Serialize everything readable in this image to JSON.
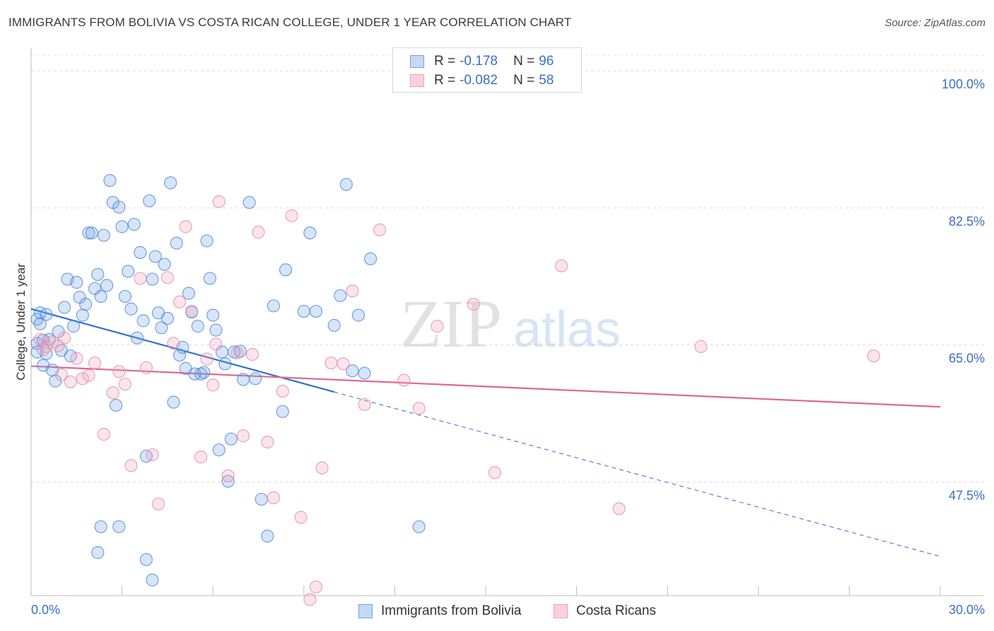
{
  "header": {
    "title": "IMMIGRANTS FROM BOLIVIA VS COSTA RICAN COLLEGE, UNDER 1 YEAR CORRELATION CHART",
    "source": "Source: ZipAtlas.com"
  },
  "watermark": {
    "zip": "ZIP",
    "atlas": "atlas"
  },
  "legend": {
    "rows": [
      {
        "r_label": "R =",
        "r_value": "-0.178",
        "n_label": "N =",
        "n_value": "96",
        "color": "#6fa3e6"
      },
      {
        "r_label": "R =",
        "r_value": "-0.082",
        "n_label": "N =",
        "n_value": "58",
        "color": "#f0a0b8"
      }
    ]
  },
  "bottom_legend": {
    "items": [
      {
        "label": "Immigrants from Bolivia",
        "color": "#6fa3e6"
      },
      {
        "label": "Costa Ricans",
        "color": "#f0a0b8"
      }
    ]
  },
  "chart_data": {
    "type": "scatter",
    "title": "IMMIGRANTS FROM BOLIVIA VS COSTA RICAN COLLEGE, UNDER 1 YEAR CORRELATION CHART",
    "xlabel": "",
    "ylabel": "College, Under 1 year",
    "xlim": [
      0,
      30
    ],
    "ylim": [
      33,
      102
    ],
    "x_tick_labels": [
      "0.0%",
      "30.0%"
    ],
    "y_ticks": [
      {
        "value": 100,
        "label": "100.0%"
      },
      {
        "value": 82.5,
        "label": "82.5%"
      },
      {
        "value": 65,
        "label": "65.0%"
      },
      {
        "value": 47.5,
        "label": "47.5%"
      }
    ],
    "legend_position": "top-center",
    "grid": true,
    "series": [
      {
        "name": "Immigrants from Bolivia",
        "color": "#6fa3e6",
        "edge": "#4a86d8",
        "trend": {
          "x": [
            0,
            10
          ],
          "y": [
            69.6,
            59.0
          ],
          "dashed_to": [
            30,
            38.0
          ],
          "color": "#2f6fd0"
        },
        "points": [
          [
            0.2,
            65.2
          ],
          [
            0.2,
            64.1
          ],
          [
            0.2,
            68.3
          ],
          [
            0.3,
            69.1
          ],
          [
            0.3,
            67.7
          ],
          [
            0.4,
            65.6
          ],
          [
            0.4,
            62.4
          ],
          [
            0.5,
            63.9
          ],
          [
            0.5,
            68.9
          ],
          [
            0.6,
            65.7
          ],
          [
            0.7,
            61.8
          ],
          [
            0.8,
            60.4
          ],
          [
            0.9,
            66.7
          ],
          [
            1.0,
            64.3
          ],
          [
            1.1,
            69.8
          ],
          [
            1.2,
            73.4
          ],
          [
            1.3,
            63.6
          ],
          [
            1.4,
            67.4
          ],
          [
            1.5,
            73.0
          ],
          [
            1.6,
            71.1
          ],
          [
            1.7,
            68.8
          ],
          [
            1.8,
            70.2
          ],
          [
            1.9,
            79.3
          ],
          [
            2.0,
            79.3
          ],
          [
            2.1,
            72.2
          ],
          [
            2.2,
            74.0
          ],
          [
            2.3,
            71.2
          ],
          [
            2.4,
            79.0
          ],
          [
            2.5,
            72.6
          ],
          [
            2.6,
            86.0
          ],
          [
            2.7,
            83.2
          ],
          [
            2.8,
            57.3
          ],
          [
            2.9,
            82.6
          ],
          [
            3.0,
            80.1
          ],
          [
            3.1,
            71.2
          ],
          [
            3.2,
            74.4
          ],
          [
            3.3,
            69.6
          ],
          [
            3.4,
            80.4
          ],
          [
            3.5,
            65.9
          ],
          [
            3.6,
            76.8
          ],
          [
            3.7,
            68.1
          ],
          [
            3.8,
            50.8
          ],
          [
            3.9,
            83.4
          ],
          [
            4.0,
            73.4
          ],
          [
            4.1,
            76.3
          ],
          [
            4.2,
            69.1
          ],
          [
            4.3,
            67.2
          ],
          [
            4.4,
            75.3
          ],
          [
            4.5,
            68.4
          ],
          [
            4.6,
            85.7
          ],
          [
            4.7,
            57.7
          ],
          [
            4.8,
            78.0
          ],
          [
            4.9,
            63.7
          ],
          [
            5.0,
            64.7
          ],
          [
            5.1,
            62.0
          ],
          [
            5.2,
            71.6
          ],
          [
            5.3,
            69.2
          ],
          [
            5.4,
            61.3
          ],
          [
            5.5,
            67.4
          ],
          [
            5.6,
            61.3
          ],
          [
            5.7,
            61.5
          ],
          [
            5.8,
            78.3
          ],
          [
            5.9,
            73.5
          ],
          [
            6.0,
            68.8
          ],
          [
            6.1,
            66.9
          ],
          [
            6.2,
            51.6
          ],
          [
            6.3,
            64.1
          ],
          [
            6.4,
            62.6
          ],
          [
            6.5,
            47.6
          ],
          [
            6.7,
            64.1
          ],
          [
            6.9,
            64.2
          ],
          [
            7.0,
            60.6
          ],
          [
            7.2,
            83.2
          ],
          [
            7.4,
            60.7
          ],
          [
            7.6,
            45.3
          ],
          [
            8.0,
            70.0
          ],
          [
            8.3,
            56.5
          ],
          [
            8.4,
            74.6
          ],
          [
            9.0,
            69.3
          ],
          [
            9.2,
            79.3
          ],
          [
            9.4,
            69.3
          ],
          [
            10.0,
            67.5
          ],
          [
            10.2,
            71.3
          ],
          [
            10.4,
            85.5
          ],
          [
            10.8,
            68.8
          ],
          [
            11.0,
            61.4
          ],
          [
            11.2,
            76.0
          ],
          [
            2.3,
            41.8
          ],
          [
            2.9,
            41.8
          ],
          [
            3.8,
            37.6
          ],
          [
            4.0,
            35.0
          ],
          [
            7.8,
            40.6
          ],
          [
            10.6,
            61.7
          ],
          [
            12.8,
            41.8
          ],
          [
            2.2,
            38.5
          ],
          [
            6.6,
            53.0
          ]
        ]
      },
      {
        "name": "Costa Ricans",
        "color": "#f0a0b8",
        "edge": "#e28aa6",
        "trend": {
          "x": [
            0,
            30
          ],
          "y": [
            62.3,
            57.1
          ],
          "color": "#e06890"
        },
        "points": [
          [
            0.3,
            65.7
          ],
          [
            0.5,
            64.8
          ],
          [
            0.7,
            65.4
          ],
          [
            0.9,
            64.9
          ],
          [
            1.1,
            65.9
          ],
          [
            1.3,
            60.3
          ],
          [
            1.5,
            63.3
          ],
          [
            1.7,
            60.7
          ],
          [
            1.9,
            61.1
          ],
          [
            2.1,
            62.7
          ],
          [
            2.4,
            53.6
          ],
          [
            2.7,
            58.9
          ],
          [
            2.9,
            61.6
          ],
          [
            3.1,
            60.0
          ],
          [
            3.3,
            49.6
          ],
          [
            3.6,
            73.5
          ],
          [
            3.8,
            62.1
          ],
          [
            4.0,
            51.0
          ],
          [
            4.2,
            44.7
          ],
          [
            4.5,
            73.6
          ],
          [
            4.7,
            65.2
          ],
          [
            4.9,
            70.5
          ],
          [
            5.1,
            80.1
          ],
          [
            5.3,
            69.3
          ],
          [
            5.6,
            50.7
          ],
          [
            5.8,
            63.2
          ],
          [
            6.0,
            59.9
          ],
          [
            6.1,
            65.1
          ],
          [
            6.2,
            83.3
          ],
          [
            6.5,
            48.3
          ],
          [
            6.8,
            64.0
          ],
          [
            7.0,
            53.4
          ],
          [
            7.3,
            63.8
          ],
          [
            7.5,
            79.4
          ],
          [
            7.8,
            52.6
          ],
          [
            8.0,
            45.5
          ],
          [
            8.3,
            59.1
          ],
          [
            8.6,
            81.5
          ],
          [
            8.9,
            43.0
          ],
          [
            9.2,
            32.5
          ],
          [
            9.4,
            34.1
          ],
          [
            9.6,
            49.3
          ],
          [
            9.9,
            62.7
          ],
          [
            10.3,
            62.6
          ],
          [
            10.6,
            71.9
          ],
          [
            11.0,
            57.4
          ],
          [
            11.5,
            79.7
          ],
          [
            12.3,
            60.5
          ],
          [
            12.8,
            56.9
          ],
          [
            13.4,
            67.4
          ],
          [
            14.6,
            70.2
          ],
          [
            15.3,
            48.7
          ],
          [
            17.5,
            75.1
          ],
          [
            19.4,
            44.1
          ],
          [
            22.1,
            64.8
          ],
          [
            27.8,
            63.6
          ],
          [
            0.4,
            64.4
          ],
          [
            1.0,
            61.2
          ]
        ]
      }
    ]
  }
}
